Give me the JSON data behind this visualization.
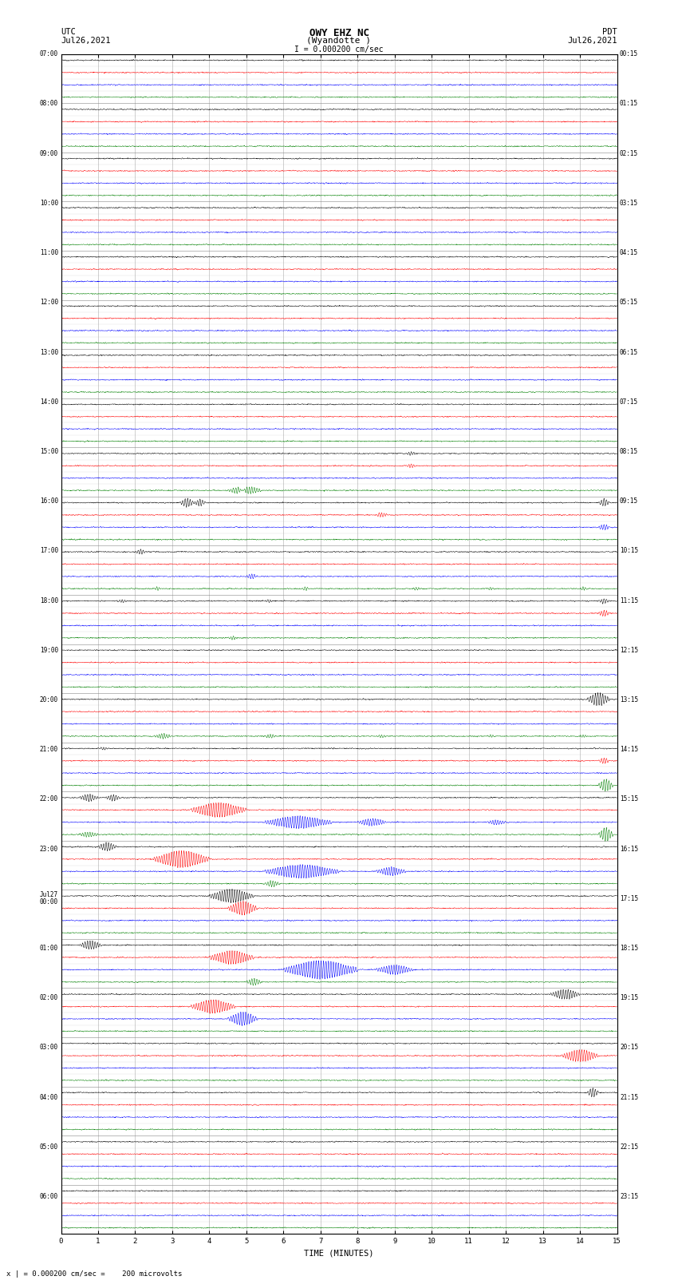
{
  "title_line1": "OWY EHZ NC",
  "title_line2": "(Wyandotte )",
  "title_line3": "I = 0.000200 cm/sec",
  "label_left_top1": "UTC",
  "label_left_top2": "Jul26,2021",
  "label_right_top1": "PDT",
  "label_right_top2": "Jul26,2021",
  "xlabel": "TIME (MINUTES)",
  "footer": "x | = 0.000200 cm/sec =    200 microvolts",
  "xmin": 0,
  "xmax": 15,
  "num_rows": 96,
  "row_colors": [
    "black",
    "red",
    "blue",
    "green"
  ],
  "noise_amplitude": 0.035,
  "background_color": "white",
  "grid_color": "#888888",
  "title_fontsize": 9,
  "label_fontsize": 8,
  "tick_fontsize": 7,
  "left_time_labels": [
    "07:00",
    "",
    "",
    "",
    "08:00",
    "",
    "",
    "",
    "09:00",
    "",
    "",
    "",
    "10:00",
    "",
    "",
    "",
    "11:00",
    "",
    "",
    "",
    "12:00",
    "",
    "",
    "",
    "13:00",
    "",
    "",
    "",
    "14:00",
    "",
    "",
    "",
    "15:00",
    "",
    "",
    "",
    "16:00",
    "",
    "",
    "",
    "17:00",
    "",
    "",
    "",
    "18:00",
    "",
    "",
    "",
    "19:00",
    "",
    "",
    "",
    "20:00",
    "",
    "",
    "",
    "21:00",
    "",
    "",
    "",
    "22:00",
    "",
    "",
    "",
    "23:00",
    "",
    "",
    "",
    "Jul27\n00:00",
    "",
    "",
    "",
    "01:00",
    "",
    "",
    "",
    "02:00",
    "",
    "",
    "",
    "03:00",
    "",
    "",
    "",
    "04:00",
    "",
    "",
    "",
    "05:00",
    "",
    "",
    "",
    "06:00",
    "",
    "",
    ""
  ],
  "right_time_labels": [
    "00:15",
    "",
    "",
    "",
    "01:15",
    "",
    "",
    "",
    "02:15",
    "",
    "",
    "",
    "03:15",
    "",
    "",
    "",
    "04:15",
    "",
    "",
    "",
    "05:15",
    "",
    "",
    "",
    "06:15",
    "",
    "",
    "",
    "07:15",
    "",
    "",
    "",
    "08:15",
    "",
    "",
    "",
    "09:15",
    "",
    "",
    "",
    "10:15",
    "",
    "",
    "",
    "11:15",
    "",
    "",
    "",
    "12:15",
    "",
    "",
    "",
    "13:15",
    "",
    "",
    "",
    "14:15",
    "",
    "",
    "",
    "15:15",
    "",
    "",
    "",
    "16:15",
    "",
    "",
    "",
    "17:15",
    "",
    "",
    "",
    "18:15",
    "",
    "",
    "",
    "19:15",
    "",
    "",
    "",
    "20:15",
    "",
    "",
    "",
    "21:15",
    "",
    "",
    "",
    "22:15",
    "",
    "",
    "",
    "23:15",
    "",
    "",
    ""
  ],
  "events": [
    {
      "row": 32,
      "color": "blue",
      "xstart": 9.3,
      "amp": 0.15,
      "dur": 0.3
    },
    {
      "row": 33,
      "color": "green",
      "xstart": 9.3,
      "amp": 0.15,
      "dur": 0.3
    },
    {
      "row": 35,
      "color": "green",
      "xstart": 4.5,
      "amp": 0.25,
      "dur": 0.5
    },
    {
      "row": 35,
      "color": "green",
      "xstart": 4.8,
      "amp": 0.3,
      "dur": 0.6
    },
    {
      "row": 36,
      "color": "black",
      "xstart": 3.2,
      "amp": 0.35,
      "dur": 0.4
    },
    {
      "row": 36,
      "color": "black",
      "xstart": 3.6,
      "amp": 0.3,
      "dur": 0.3
    },
    {
      "row": 36,
      "color": "black",
      "xstart": 14.5,
      "amp": 0.3,
      "dur": 0.3
    },
    {
      "row": 37,
      "color": "red",
      "xstart": 8.5,
      "amp": 0.2,
      "dur": 0.3
    },
    {
      "row": 38,
      "color": "blue",
      "xstart": 14.5,
      "amp": 0.25,
      "dur": 0.3
    },
    {
      "row": 40,
      "color": "black",
      "xstart": 2.0,
      "amp": 0.2,
      "dur": 0.3
    },
    {
      "row": 42,
      "color": "black",
      "xstart": 5.0,
      "amp": 0.2,
      "dur": 0.3
    },
    {
      "row": 43,
      "color": "red",
      "xstart": 2.5,
      "amp": 0.15,
      "dur": 0.2
    },
    {
      "row": 43,
      "color": "red",
      "xstart": 6.5,
      "amp": 0.15,
      "dur": 0.2
    },
    {
      "row": 43,
      "color": "red",
      "xstart": 9.5,
      "amp": 0.12,
      "dur": 0.2
    },
    {
      "row": 43,
      "color": "red",
      "xstart": 11.5,
      "amp": 0.12,
      "dur": 0.2
    },
    {
      "row": 43,
      "color": "red",
      "xstart": 14.0,
      "amp": 0.12,
      "dur": 0.2
    },
    {
      "row": 44,
      "color": "green",
      "xstart": 1.5,
      "amp": 0.12,
      "dur": 0.3
    },
    {
      "row": 44,
      "color": "green",
      "xstart": 5.5,
      "amp": 0.12,
      "dur": 0.2
    },
    {
      "row": 44,
      "color": "green",
      "xstart": 14.5,
      "amp": 0.2,
      "dur": 0.3
    },
    {
      "row": 45,
      "color": "blue",
      "xstart": 14.5,
      "amp": 0.25,
      "dur": 0.3
    },
    {
      "row": 47,
      "color": "green",
      "xstart": 4.5,
      "amp": 0.15,
      "dur": 0.25
    },
    {
      "row": 52,
      "color": "green",
      "xstart": 14.2,
      "amp": 0.55,
      "dur": 0.6
    },
    {
      "row": 55,
      "color": "red",
      "xstart": 2.5,
      "amp": 0.2,
      "dur": 0.5
    },
    {
      "row": 55,
      "color": "red",
      "xstart": 5.5,
      "amp": 0.15,
      "dur": 0.3
    },
    {
      "row": 55,
      "color": "red",
      "xstart": 8.5,
      "dur": 0.3,
      "amp": 0.12
    },
    {
      "row": 55,
      "color": "red",
      "xstart": 11.5,
      "amp": 0.12,
      "dur": 0.2
    },
    {
      "row": 55,
      "color": "red",
      "xstart": 14.0,
      "amp": 0.12,
      "dur": 0.2
    },
    {
      "row": 56,
      "color": "green",
      "xstart": 1.0,
      "amp": 0.12,
      "dur": 0.3
    },
    {
      "row": 57,
      "color": "blue",
      "xstart": 14.5,
      "amp": 0.25,
      "dur": 0.3
    },
    {
      "row": 59,
      "color": "red",
      "xstart": 14.5,
      "amp": 0.5,
      "dur": 0.4
    },
    {
      "row": 60,
      "color": "black",
      "xstart": 0.5,
      "amp": 0.3,
      "dur": 0.5
    },
    {
      "row": 60,
      "color": "black",
      "xstart": 1.2,
      "amp": 0.25,
      "dur": 0.4
    },
    {
      "row": 61,
      "color": "red",
      "xstart": 3.5,
      "amp": 0.6,
      "dur": 1.5
    },
    {
      "row": 62,
      "color": "blue",
      "xstart": 5.5,
      "amp": 0.5,
      "dur": 1.8
    },
    {
      "row": 62,
      "color": "blue",
      "xstart": 8.0,
      "amp": 0.3,
      "dur": 0.8
    },
    {
      "row": 62,
      "color": "blue",
      "xstart": 11.5,
      "amp": 0.2,
      "dur": 0.5
    },
    {
      "row": 63,
      "color": "green",
      "xstart": 0.5,
      "amp": 0.2,
      "dur": 0.5
    },
    {
      "row": 63,
      "color": "green",
      "xstart": 14.5,
      "amp": 0.55,
      "dur": 0.4
    },
    {
      "row": 64,
      "color": "black",
      "xstart": 1.0,
      "amp": 0.35,
      "dur": 0.5
    },
    {
      "row": 65,
      "color": "red",
      "xstart": 2.5,
      "amp": 0.7,
      "dur": 1.5
    },
    {
      "row": 66,
      "color": "blue",
      "xstart": 5.5,
      "amp": 0.55,
      "dur": 2.0
    },
    {
      "row": 66,
      "color": "blue",
      "xstart": 8.5,
      "amp": 0.35,
      "dur": 0.8
    },
    {
      "row": 67,
      "color": "black",
      "xstart": 5.5,
      "amp": 0.25,
      "dur": 0.4
    },
    {
      "row": 68,
      "color": "red",
      "xstart": 4.0,
      "amp": 0.55,
      "dur": 1.2
    },
    {
      "row": 69,
      "color": "blue",
      "xstart": 4.5,
      "amp": 0.55,
      "dur": 0.8
    },
    {
      "row": 72,
      "color": "black",
      "xstart": 0.5,
      "amp": 0.35,
      "dur": 0.6
    },
    {
      "row": 73,
      "color": "red",
      "xstart": 4.0,
      "amp": 0.55,
      "dur": 1.2
    },
    {
      "row": 74,
      "color": "blue",
      "xstart": 6.0,
      "amp": 0.75,
      "dur": 2.0
    },
    {
      "row": 74,
      "color": "blue",
      "xstart": 8.5,
      "amp": 0.4,
      "dur": 1.0
    },
    {
      "row": 75,
      "color": "black",
      "xstart": 5.0,
      "amp": 0.3,
      "dur": 0.4
    },
    {
      "row": 76,
      "color": "black",
      "xstart": 13.2,
      "amp": 0.4,
      "dur": 0.8
    },
    {
      "row": 77,
      "color": "red",
      "xstart": 3.5,
      "amp": 0.55,
      "dur": 1.2
    },
    {
      "row": 78,
      "color": "blue",
      "xstart": 4.5,
      "amp": 0.55,
      "dur": 0.8
    },
    {
      "row": 81,
      "color": "red",
      "xstart": 13.5,
      "amp": 0.5,
      "dur": 1.0
    },
    {
      "row": 84,
      "color": "red",
      "xstart": 14.2,
      "amp": 0.4,
      "dur": 0.3
    }
  ]
}
